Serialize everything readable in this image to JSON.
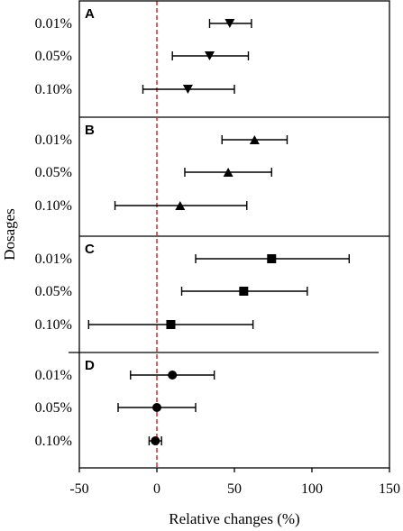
{
  "chart_data": {
    "type": "forest",
    "xlabel": "Relative changes (%)",
    "ylabel": "Dosages",
    "xlim": [
      -50,
      150
    ],
    "xticks": [
      -50,
      0,
      50,
      100,
      150
    ],
    "xtick_labels": [
      "-50",
      "0",
      "50",
      "100",
      "150"
    ],
    "reference_line": {
      "x": 0,
      "color": "#e8202a",
      "style": "dashed"
    },
    "categories": [
      "0.01%",
      "0.05%",
      "0.10%"
    ],
    "panels": [
      {
        "label": "A",
        "marker": "triangle-down",
        "points": [
          {
            "category": "0.01%",
            "estimate": 47,
            "ci": [
              34,
              61
            ]
          },
          {
            "category": "0.05%",
            "estimate": 34,
            "ci": [
              10,
              59
            ]
          },
          {
            "category": "0.10%",
            "estimate": 20,
            "ci": [
              -9,
              50
            ]
          }
        ]
      },
      {
        "label": "B",
        "marker": "triangle-up",
        "points": [
          {
            "category": "0.01%",
            "estimate": 63,
            "ci": [
              42,
              84
            ]
          },
          {
            "category": "0.05%",
            "estimate": 46,
            "ci": [
              18,
              74
            ]
          },
          {
            "category": "0.10%",
            "estimate": 15,
            "ci": [
              -27,
              58
            ]
          }
        ]
      },
      {
        "label": "C",
        "marker": "square",
        "points": [
          {
            "category": "0.01%",
            "estimate": 74,
            "ci": [
              25,
              124
            ]
          },
          {
            "category": "0.05%",
            "estimate": 56,
            "ci": [
              16,
              97
            ]
          },
          {
            "category": "0.10%",
            "estimate": 9,
            "ci": [
              -44,
              62
            ]
          }
        ]
      },
      {
        "label": "D",
        "marker": "circle",
        "points": [
          {
            "category": "0.01%",
            "estimate": 10,
            "ci": [
              -17,
              37
            ]
          },
          {
            "category": "0.05%",
            "estimate": 0,
            "ci": [
              -25,
              25
            ]
          },
          {
            "category": "0.10%",
            "estimate": -1,
            "ci": [
              -5,
              3
            ]
          }
        ]
      }
    ]
  }
}
